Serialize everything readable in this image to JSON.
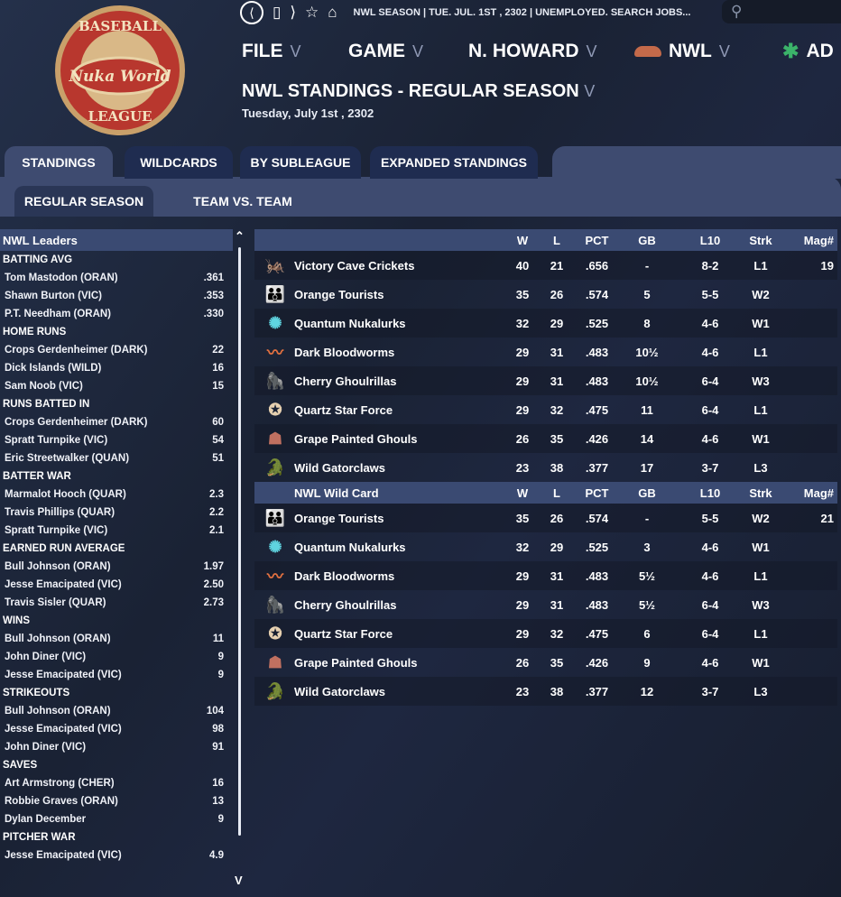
{
  "logo": {
    "text_top": "BASEBALL",
    "text_mid": "Nuka World",
    "text_bottom": "LEAGUE"
  },
  "topbar": {
    "status": "NWL SEASON  |  TUE. JUL. 1ST , 2302  |  UNEMPLOYED. SEARCH JOBS..."
  },
  "menu": [
    {
      "label": "FILE"
    },
    {
      "label": "GAME"
    },
    {
      "label": "N. HOWARD"
    },
    {
      "label": "NWL"
    },
    {
      "label": "AD"
    }
  ],
  "page": {
    "title": "NWL STANDINGS - REGULAR SEASON",
    "date": "Tuesday, July 1st , 2302"
  },
  "tabs": [
    {
      "label": "STANDINGS",
      "active": true
    },
    {
      "label": "WILDCARDS"
    },
    {
      "label": "BY SUBLEAGUE"
    },
    {
      "label": "EXPANDED STANDINGS"
    }
  ],
  "subtabs": [
    {
      "label": "REGULAR SEASON",
      "active": true
    },
    {
      "label": "TEAM VS. TEAM"
    }
  ],
  "leaders": {
    "title": "NWL Leaders",
    "categories": [
      {
        "name": "BATTING AVG",
        "rows": [
          [
            "Tom Mastodon (ORAN)",
            ".361"
          ],
          [
            "Shawn Burton (VIC)",
            ".353"
          ],
          [
            "P.T. Needham (ORAN)",
            ".330"
          ]
        ]
      },
      {
        "name": "HOME RUNS",
        "rows": [
          [
            "Crops Gerdenheimer (DARK)",
            "22"
          ],
          [
            "Dick Islands (WILD)",
            "16"
          ],
          [
            "Sam Noob (VIC)",
            "15"
          ]
        ]
      },
      {
        "name": "RUNS BATTED IN",
        "rows": [
          [
            "Crops Gerdenheimer (DARK)",
            "60"
          ],
          [
            "Spratt Turnpike (VIC)",
            "54"
          ],
          [
            "Eric Streetwalker (QUAN)",
            "51"
          ]
        ]
      },
      {
        "name": "BATTER WAR",
        "rows": [
          [
            "Marmalot Hooch (QUAR)",
            "2.3"
          ],
          [
            "Travis Phillips (QUAR)",
            "2.2"
          ],
          [
            "Spratt Turnpike (VIC)",
            "2.1"
          ]
        ]
      },
      {
        "name": "EARNED RUN AVERAGE",
        "rows": [
          [
            "Bull Johnson (ORAN)",
            "1.97"
          ],
          [
            "Jesse Emacipated (VIC)",
            "2.50"
          ],
          [
            "Travis Sisler (QUAR)",
            "2.73"
          ]
        ]
      },
      {
        "name": "WINS",
        "rows": [
          [
            "Bull Johnson (ORAN)",
            "11"
          ],
          [
            "John Diner (VIC)",
            "9"
          ],
          [
            "Jesse Emacipated (VIC)",
            "9"
          ]
        ]
      },
      {
        "name": "STRIKEOUTS",
        "rows": [
          [
            "Bull Johnson (ORAN)",
            "104"
          ],
          [
            "Jesse Emacipated (VIC)",
            "98"
          ],
          [
            "John Diner (VIC)",
            "91"
          ]
        ]
      },
      {
        "name": "SAVES",
        "rows": [
          [
            "Art Armstrong (CHER)",
            "16"
          ],
          [
            "Robbie Graves (ORAN)",
            "13"
          ],
          [
            "Dylan December",
            "9"
          ]
        ]
      },
      {
        "name": "PITCHER WAR",
        "rows": [
          [
            "Jesse Emacipated (VIC)",
            "4.9"
          ]
        ]
      }
    ]
  },
  "standings": {
    "columns": [
      "W",
      "L",
      "PCT",
      "GB",
      "L10",
      "Strk",
      "Mag#"
    ],
    "sections": [
      {
        "title": "",
        "rows": [
          [
            "Victory Cave Crickets",
            "40",
            "21",
            ".656",
            "-",
            "8-2",
            "L1",
            "19"
          ],
          [
            "Orange Tourists",
            "35",
            "26",
            ".574",
            "5",
            "5-5",
            "W2",
            ""
          ],
          [
            "Quantum Nukalurks",
            "32",
            "29",
            ".525",
            "8",
            "4-6",
            "W1",
            ""
          ],
          [
            "Dark Bloodworms",
            "29",
            "31",
            ".483",
            "10½",
            "4-6",
            "L1",
            ""
          ],
          [
            "Cherry Ghoulrillas",
            "29",
            "31",
            ".483",
            "10½",
            "6-4",
            "W3",
            ""
          ],
          [
            "Quartz Star Force",
            "29",
            "32",
            ".475",
            "11",
            "6-4",
            "L1",
            ""
          ],
          [
            "Grape Painted Ghouls",
            "26",
            "35",
            ".426",
            "14",
            "4-6",
            "W1",
            ""
          ],
          [
            "Wild Gatorclaws",
            "23",
            "38",
            ".377",
            "17",
            "3-7",
            "L3",
            ""
          ]
        ]
      },
      {
        "title": "NWL  Wild Card",
        "rows": [
          [
            "Orange Tourists",
            "35",
            "26",
            ".574",
            "-",
            "5-5",
            "W2",
            "21"
          ],
          [
            "Quantum Nukalurks",
            "32",
            "29",
            ".525",
            "3",
            "4-6",
            "W1",
            ""
          ],
          [
            "Dark Bloodworms",
            "29",
            "31",
            ".483",
            "5½",
            "4-6",
            "L1",
            ""
          ],
          [
            "Cherry Ghoulrillas",
            "29",
            "31",
            ".483",
            "5½",
            "6-4",
            "W3",
            ""
          ],
          [
            "Quartz Star Force",
            "29",
            "32",
            ".475",
            "6",
            "6-4",
            "L1",
            ""
          ],
          [
            "Grape Painted Ghouls",
            "26",
            "35",
            ".426",
            "9",
            "4-6",
            "W1",
            ""
          ],
          [
            "Wild Gatorclaws",
            "23",
            "38",
            ".377",
            "12",
            "3-7",
            "L3",
            ""
          ]
        ]
      }
    ]
  },
  "team_icons": {
    "Victory Cave Crickets": "cricket-icon",
    "Orange Tourists": "tourists-icon",
    "Quantum Nukalurks": "nukalurk-icon",
    "Dark Bloodworms": "bloodworm-icon",
    "Cherry Ghoulrillas": "ghoulrilla-icon",
    "Quartz Star Force": "star-force-icon",
    "Grape Painted Ghouls": "ghoul-icon",
    "Wild Gatorclaws": "gatorclaw-icon"
  },
  "colors": {
    "header_bg": "#3a4a72",
    "tab_active": "#3e4b70",
    "tab_inactive": "#1f2c50",
    "background": "#1b2335"
  }
}
